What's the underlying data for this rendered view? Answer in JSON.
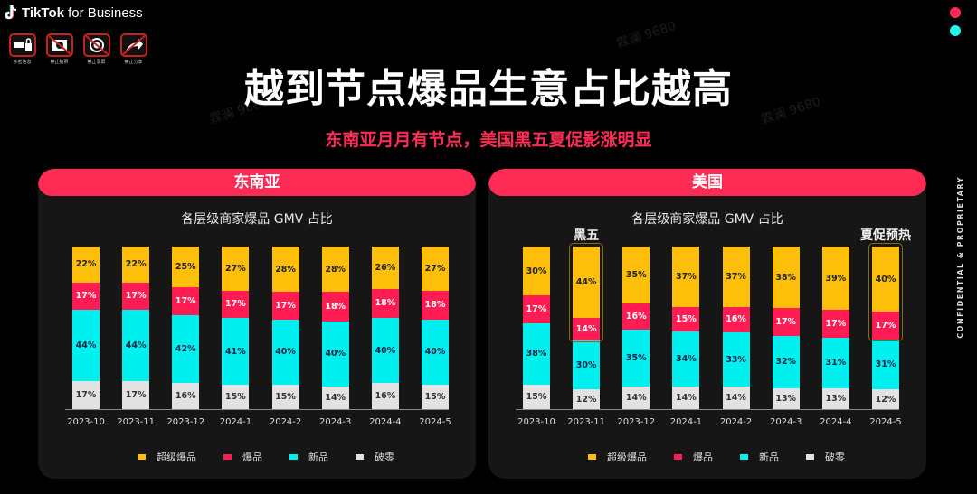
{
  "header": {
    "logo_text_bold": "TikTok",
    "logo_text_rest": " for Business",
    "restriction_icons": [
      {
        "icon": "lock-icon",
        "label": "涉密信息"
      },
      {
        "icon": "no-photo-icon",
        "label": "禁止拍照"
      },
      {
        "icon": "no-record-icon",
        "label": "禁止录屏"
      },
      {
        "icon": "no-share-icon",
        "label": "禁止分享"
      }
    ],
    "brand_dots": [
      "#fe2c55",
      "#25f4ee"
    ]
  },
  "title": "越到节点爆品生意占比越高",
  "subtitle": "东南亚月月有节点，美国黑五夏促影涨明显",
  "side_label": "CONFIDENTIAL & PROPRIETARY",
  "watermark": "霖澜 9680",
  "colors": {
    "super": "#fdbf0a",
    "hot": "#fe1c52",
    "new": "#00f0f0",
    "zero": "#e2e2e2",
    "accent": "#fe2c55"
  },
  "legend": [
    "超级爆品",
    "爆品",
    "新品",
    "破零"
  ],
  "panels": [
    {
      "header": "东南亚",
      "chart_title": "各层级商家爆品 GMV 占比",
      "bars": [
        {
          "x": "2023-10",
          "super": "22%",
          "hot": "17%",
          "new": "44%",
          "zero": "17%"
        },
        {
          "x": "2023-11",
          "super": "22%",
          "hot": "17%",
          "new": "44%",
          "zero": "17%"
        },
        {
          "x": "2023-12",
          "super": "25%",
          "hot": "17%",
          "new": "42%",
          "zero": "16%"
        },
        {
          "x": "2024-1",
          "super": "27%",
          "hot": "17%",
          "new": "41%",
          "zero": "15%"
        },
        {
          "x": "2024-2",
          "super": "28%",
          "hot": "17%",
          "new": "40%",
          "zero": "15%"
        },
        {
          "x": "2024-3",
          "super": "28%",
          "hot": "18%",
          "new": "40%",
          "zero": "14%"
        },
        {
          "x": "2024-4",
          "super": "26%",
          "hot": "18%",
          "new": "40%",
          "zero": "16%"
        },
        {
          "x": "2024-5",
          "super": "27%",
          "hot": "18%",
          "new": "40%",
          "zero": "15%"
        }
      ]
    },
    {
      "header": "美国",
      "chart_title": "各层级商家爆品 GMV 占比",
      "bars": [
        {
          "x": "2023-10",
          "super": "30%",
          "hot": "17%",
          "new": "38%",
          "zero": "15%"
        },
        {
          "x": "2023-11",
          "super": "44%",
          "hot": "14%",
          "new": "30%",
          "zero": "12%",
          "annotation": "黑五"
        },
        {
          "x": "2023-12",
          "super": "35%",
          "hot": "16%",
          "new": "35%",
          "zero": "14%"
        },
        {
          "x": "2024-1",
          "super": "37%",
          "hot": "15%",
          "new": "34%",
          "zero": "14%"
        },
        {
          "x": "2024-2",
          "super": "37%",
          "hot": "16%",
          "new": "33%",
          "zero": "14%"
        },
        {
          "x": "2024-3",
          "super": "38%",
          "hot": "17%",
          "new": "32%",
          "zero": "13%"
        },
        {
          "x": "2024-4",
          "super": "39%",
          "hot": "17%",
          "new": "31%",
          "zero": "13%"
        },
        {
          "x": "2024-5",
          "super": "40%",
          "hot": "17%",
          "new": "31%",
          "zero": "12%",
          "annotation": "夏促预热"
        }
      ]
    }
  ],
  "chart_data": [
    {
      "type": "bar",
      "stacked": true,
      "title": "东南亚 — 各层级商家爆品 GMV 占比",
      "categories": [
        "2023-10",
        "2023-11",
        "2023-12",
        "2024-1",
        "2024-2",
        "2024-3",
        "2024-4",
        "2024-5"
      ],
      "series": [
        {
          "name": "破零",
          "values": [
            17,
            17,
            16,
            15,
            15,
            14,
            16,
            15
          ]
        },
        {
          "name": "新品",
          "values": [
            44,
            44,
            42,
            41,
            40,
            40,
            40,
            40
          ]
        },
        {
          "name": "爆品",
          "values": [
            17,
            17,
            17,
            17,
            17,
            18,
            18,
            18
          ]
        },
        {
          "name": "超级爆品",
          "values": [
            22,
            22,
            25,
            27,
            28,
            28,
            26,
            27
          ]
        }
      ],
      "xlabel": "",
      "ylabel": "",
      "ylim": [
        0,
        100
      ],
      "grid": false,
      "legend_position": "bottom"
    },
    {
      "type": "bar",
      "stacked": true,
      "title": "美国 — 各层级商家爆品 GMV 占比",
      "categories": [
        "2023-10",
        "2023-11",
        "2023-12",
        "2024-1",
        "2024-2",
        "2024-3",
        "2024-4",
        "2024-5"
      ],
      "series": [
        {
          "name": "破零",
          "values": [
            15,
            12,
            14,
            14,
            14,
            13,
            13,
            12
          ]
        },
        {
          "name": "新品",
          "values": [
            38,
            30,
            35,
            34,
            33,
            32,
            31,
            31
          ]
        },
        {
          "name": "爆品",
          "values": [
            17,
            14,
            16,
            15,
            16,
            17,
            17,
            17
          ]
        },
        {
          "name": "超级爆品",
          "values": [
            30,
            44,
            35,
            37,
            37,
            38,
            39,
            40
          ]
        }
      ],
      "annotations": [
        {
          "x": "2023-11",
          "text": "黑五"
        },
        {
          "x": "2024-5",
          "text": "夏促预热"
        }
      ],
      "xlabel": "",
      "ylabel": "",
      "ylim": [
        0,
        100
      ],
      "grid": false,
      "legend_position": "bottom"
    }
  ]
}
